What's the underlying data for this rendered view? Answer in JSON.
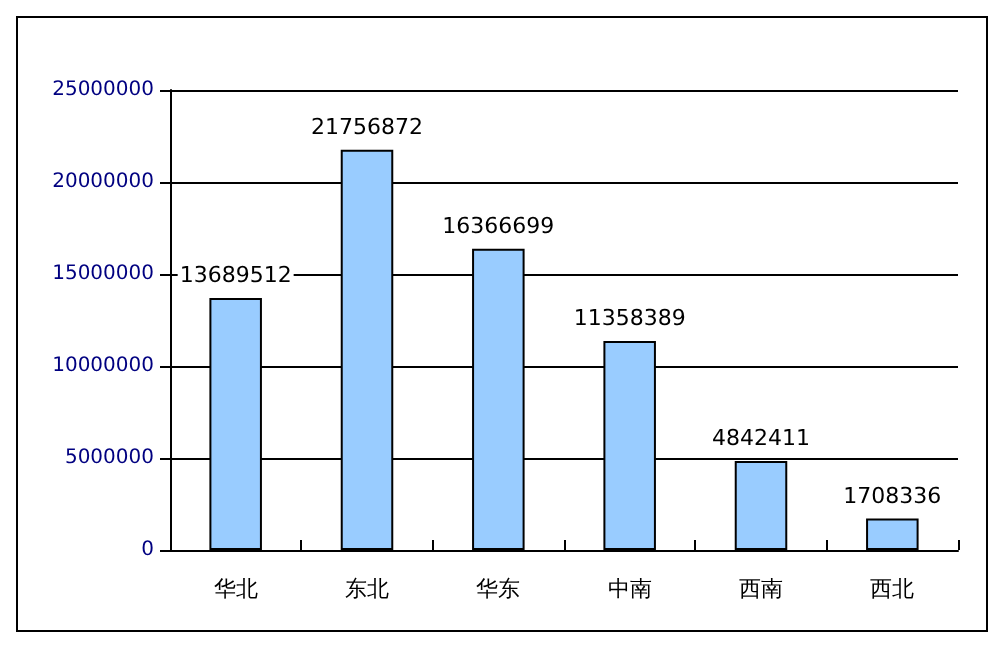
{
  "chart_data": {
    "type": "bar",
    "categories": [
      "华北",
      "东北",
      "华东",
      "中南",
      "西南",
      "西北"
    ],
    "values": [
      13689512,
      21756872,
      16366699,
      11358389,
      4842411,
      1708336
    ],
    "color": "#99ccff",
    "ylim": [
      0,
      25000000
    ],
    "yticks": [
      0,
      5000000,
      10000000,
      15000000,
      20000000,
      25000000
    ],
    "grid": "y",
    "data_labels": true
  }
}
